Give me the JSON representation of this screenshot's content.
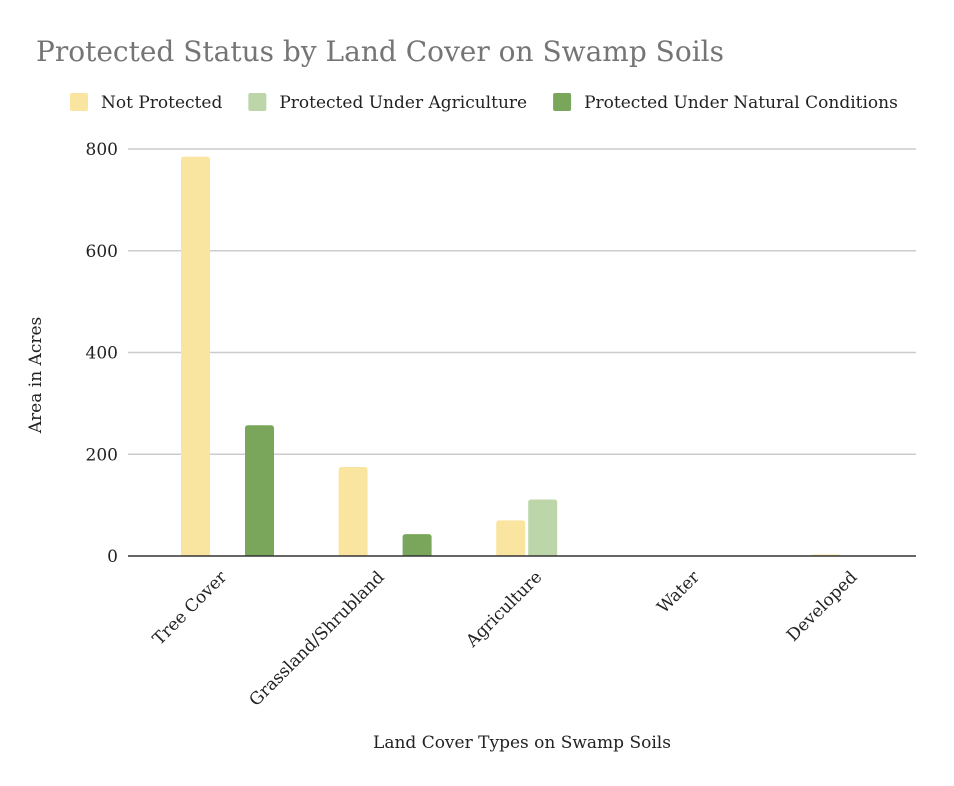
{
  "chart_data": {
    "type": "bar",
    "title": "Protected Status by Land Cover on Swamp Soils",
    "xlabel": "Land Cover Types on Swamp Soils",
    "ylabel": "Area in Acres",
    "categories": [
      "Tree Cover",
      "Grassland/Shrubland",
      "Agriculture",
      "Water",
      "Developed"
    ],
    "series": [
      {
        "name": "Not Protected",
        "color": "#fae5a0",
        "values": [
          785,
          175,
          70,
          1,
          3
        ]
      },
      {
        "name": "Protected Under Agriculture",
        "color": "#bcd5a9",
        "values": [
          0,
          0,
          111,
          0,
          0
        ]
      },
      {
        "name": "Protected Under Natural Conditions",
        "color": "#79a65a",
        "values": [
          257,
          43,
          0,
          0,
          0
        ]
      }
    ],
    "ylim": [
      0,
      800
    ],
    "yticks": [
      0,
      200,
      400,
      600,
      800
    ],
    "grid": true,
    "legend_position": "top-left"
  }
}
